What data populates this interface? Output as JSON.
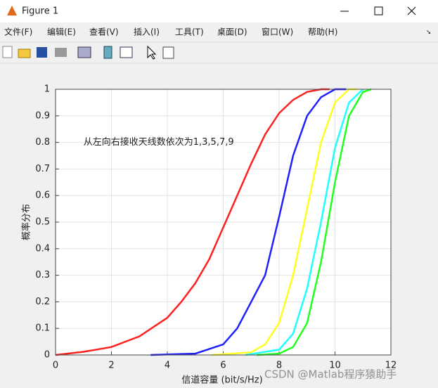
{
  "window": {
    "title": "Figure 1",
    "menu": [
      "文件(F)",
      "编辑(E)",
      "查看(V)",
      "插入(I)",
      "工具(T)",
      "桌面(D)",
      "窗口(W)",
      "帮助(H)"
    ]
  },
  "watermark": "CSDN @Matlab程序猿助手",
  "chart_data": {
    "type": "line",
    "x_label": "信道容量 (bit/s/Hz)",
    "y_label": "概率分布",
    "annotation": "从左向右接收天线数依次为1,3,5,7,9",
    "series": [
      {
        "color": "#ff2020",
        "x": [
          0,
          1,
          2,
          3,
          4,
          4.5,
          5,
          5.5,
          6,
          6.5,
          7,
          7.5,
          8,
          8.5,
          9,
          9.5,
          9.8
        ],
        "values": [
          0,
          0.012,
          0.03,
          0.07,
          0.14,
          0.2,
          0.27,
          0.36,
          0.48,
          0.6,
          0.72,
          0.83,
          0.91,
          0.96,
          0.99,
          1,
          1
        ]
      },
      {
        "color": "#2020ff",
        "x": [
          3.4,
          5,
          6,
          6.5,
          7,
          7.5,
          8,
          8.5,
          9,
          9.5,
          10,
          10.4
        ],
        "values": [
          0,
          0.005,
          0.04,
          0.1,
          0.2,
          0.3,
          0.52,
          0.75,
          0.9,
          0.97,
          1,
          1
        ]
      },
      {
        "color": "#ffff20",
        "x": [
          5.6,
          7,
          7.5,
          8,
          8.5,
          9,
          9.5,
          10,
          10.5,
          10.8
        ],
        "values": [
          0,
          0.01,
          0.04,
          0.12,
          0.3,
          0.55,
          0.8,
          0.95,
          1,
          1
        ]
      },
      {
        "color": "#20ffff",
        "x": [
          6.8,
          8,
          8.5,
          9,
          9.5,
          10,
          10.5,
          11
        ],
        "values": [
          0,
          0.02,
          0.08,
          0.25,
          0.5,
          0.78,
          0.95,
          1
        ]
      },
      {
        "color": "#20ff20",
        "x": [
          7.2,
          8,
          8.5,
          9,
          9.5,
          10,
          10.5,
          11,
          11.3
        ],
        "values": [
          0,
          0.005,
          0.03,
          0.12,
          0.35,
          0.65,
          0.9,
          0.99,
          1
        ]
      }
    ],
    "xlim": [
      0,
      12
    ],
    "xticks": [
      0,
      2,
      4,
      6,
      8,
      10,
      12
    ],
    "ylim": [
      0,
      1
    ],
    "yticks": [
      0,
      0.1,
      0.2,
      0.3,
      0.4,
      0.5,
      0.6,
      0.7,
      0.8,
      0.9,
      1
    ],
    "grid": true
  }
}
